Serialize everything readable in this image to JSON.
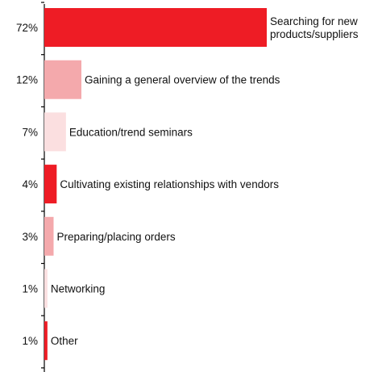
{
  "chart_data": {
    "type": "bar",
    "orientation": "horizontal",
    "title": "",
    "xlabel": "",
    "ylabel": "",
    "xlim": [
      0,
      72
    ],
    "grid": false,
    "legend": "none",
    "categories": [
      [
        "Searching for new",
        "products/suppliers"
      ],
      [
        "Gaining a general overview of the trends"
      ],
      [
        "Education/trend seminars"
      ],
      [
        "Cultivating existing relationships with vendors"
      ],
      [
        "Preparing/placing orders"
      ],
      [
        "Networking"
      ],
      [
        "Other"
      ]
    ],
    "values": [
      72,
      12,
      7,
      4,
      3,
      1,
      1
    ],
    "value_labels": [
      "72%",
      "12%",
      "7%",
      "4%",
      "3%",
      "1%",
      "1%"
    ],
    "bar_colors": [
      "#ee1c25",
      "#f4a9ac",
      "#fbdfe0",
      "#ee1c25",
      "#f4a9ac",
      "#fbdfe0",
      "#ee1c25"
    ],
    "axis_color": "#000000"
  }
}
